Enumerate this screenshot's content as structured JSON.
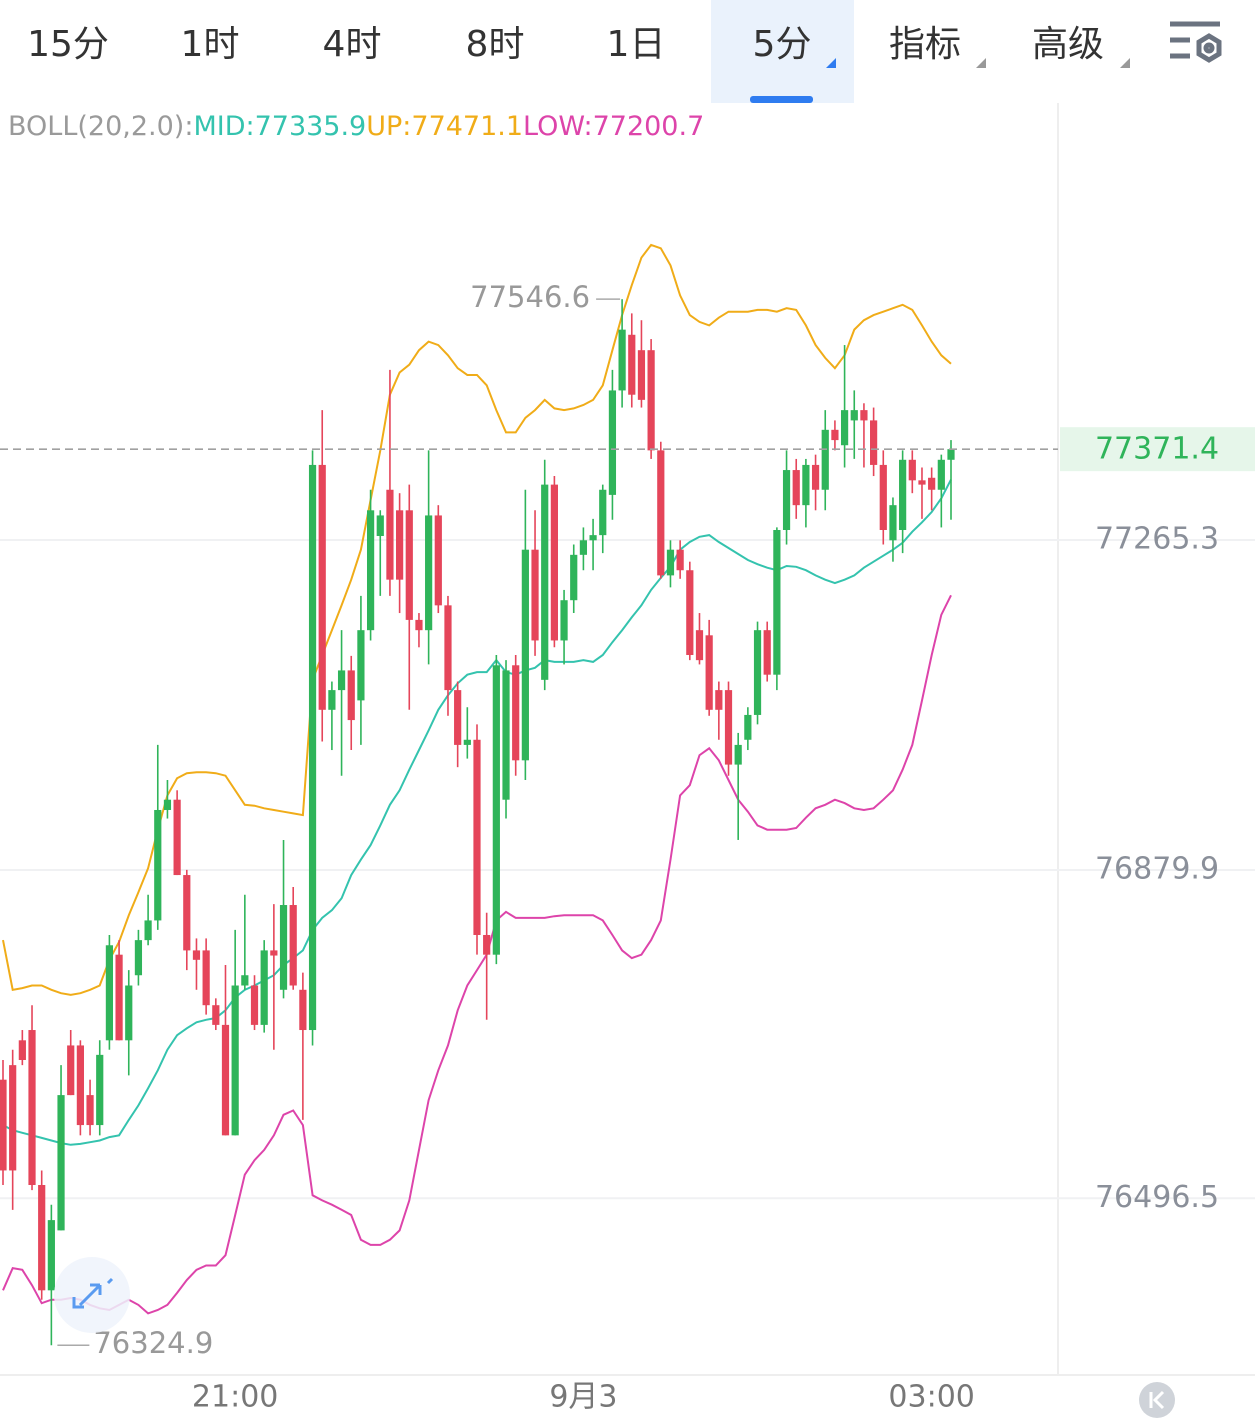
{
  "tabs": [
    "15分",
    "1时",
    "4时",
    "8时",
    "1日",
    "5分",
    "指标",
    "高级"
  ],
  "chart_data": {
    "type": "candlestick",
    "indicator": "BOLL(20,2.0):",
    "categories": [
      null,
      null,
      null,
      null,
      null,
      null,
      null,
      null,
      null,
      null,
      null,
      null,
      null,
      null,
      null,
      null,
      null,
      null,
      null,
      null,
      null,
      null,
      null,
      null,
      "21:00",
      null,
      null,
      null,
      null,
      null,
      null,
      null,
      null,
      null,
      null,
      null,
      null,
      null,
      null,
      null,
      null,
      null,
      null,
      null,
      null,
      null,
      null,
      null,
      null,
      null,
      null,
      null,
      null,
      null,
      null,
      null,
      null,
      null,
      null,
      null,
      "9月3",
      null,
      null,
      null,
      null,
      null,
      null,
      null,
      null,
      null,
      null,
      null,
      null,
      null,
      null,
      null,
      null,
      null,
      null,
      null,
      null,
      null,
      null,
      null,
      null,
      null,
      null,
      null,
      null,
      null,
      null,
      null,
      null,
      null,
      null,
      null,
      "03:00",
      null,
      null
    ],
    "open": [
      76635,
      76652,
      76681,
      76693,
      76512,
      76389,
      76459,
      76675,
      76675,
      76617,
      76582,
      76681,
      76781,
      76681,
      76757,
      76798,
      76821,
      76950,
      76962,
      76874,
      76786,
      76786,
      76722,
      76699,
      76570,
      76745,
      76745,
      76699,
      76786,
      76740,
      76839,
      76740,
      76693,
      77353,
      77067,
      77090,
      77113,
      77078,
      77160,
      77270,
      77324,
      77300,
      77300,
      77172,
      77160,
      77294,
      77189,
      77090,
      77026,
      77032,
      76804,
      76781,
      76962,
      77119,
      77008,
      77254,
      77102,
      77330,
      77148,
      77195,
      77248,
      77265,
      77271,
      77318,
      77440,
      77505,
      77487,
      77487,
      77370,
      77224,
      77254,
      77230,
      77160,
      77154,
      77090,
      77090,
      77003,
      77032,
      77061,
      77160,
      77108,
      77277,
      77347,
      77306,
      77353,
      77324,
      77394,
      77376,
      77405,
      77417,
      77405,
      77353,
      77265,
      77277,
      77359,
      77335,
      77338,
      77324,
      77359
    ],
    "high": [
      76658,
      76670,
      76693,
      76722,
      76529,
      76489,
      76652,
      76693,
      76681,
      76635,
      76681,
      76804,
      76798,
      76763,
      76810,
      76851,
      77026,
      76985,
      76973,
      76880,
      76800,
      76800,
      76730,
      76769,
      76810,
      76851,
      76757,
      76798,
      76840,
      76915,
      76860,
      76760,
      77370,
      77417,
      77100,
      77160,
      77130,
      77200,
      77324,
      77300,
      77464,
      77320,
      77330,
      77180,
      77370,
      77306,
      77200,
      77100,
      77070,
      77050,
      76830,
      77131,
      77125,
      77131,
      77324,
      77300,
      77359,
      77340,
      77207,
      77260,
      77280,
      77290,
      77330,
      77464,
      77546.6,
      77530,
      77522,
      77500,
      77380,
      77265,
      77265,
      77240,
      77180,
      77172,
      77100,
      77100,
      77040,
      77070,
      77170,
      77170,
      77280,
      77370,
      77360,
      77360,
      77365,
      77417,
      77405,
      77493,
      77440,
      77425,
      77420,
      77370,
      77315,
      77370,
      77370,
      77350,
      77350,
      77365,
      77382
    ],
    "low": [
      76512,
      76483,
      76652,
      76506,
      76378,
      76324.9,
      76459,
      76617,
      76570,
      76570,
      76570,
      76670,
      76681,
      76640,
      76745,
      76792,
      76810,
      76940,
      76874,
      76763,
      76740,
      76711,
      76693,
      76570,
      76570,
      76740,
      76693,
      76690,
      76670,
      76730,
      76740,
      76588,
      76675,
      77030,
      77020,
      76990,
      77020,
      77026,
      77148,
      77200,
      77200,
      77180,
      77067,
      77140,
      77120,
      77180,
      77060,
      77000,
      77010,
      76781,
      76705,
      76770,
      76940,
      76990,
      76985,
      77130,
      77090,
      77140,
      77120,
      77180,
      77230,
      77230,
      77250,
      77289,
      77420,
      77420,
      77420,
      77360,
      77220,
      77210,
      77220,
      77125,
      77120,
      77060,
      77032,
      76990,
      76915,
      77020,
      77050,
      77100,
      77090,
      77260,
      77290,
      77280,
      77300,
      77300,
      77370,
      77350,
      77360,
      77350,
      77340,
      77260,
      77240,
      77250,
      77320,
      77290,
      77300,
      77280,
      77289
    ],
    "close": [
      76529,
      76529,
      76658,
      76512,
      76389,
      76471,
      76617,
      76617,
      76582,
      76582,
      76664,
      76792,
      76681,
      76745,
      76798,
      76821,
      76950,
      76962,
      76874,
      76786,
      76775,
      76722,
      76699,
      76570,
      76745,
      76757,
      76699,
      76786,
      76780,
      76839,
      76745,
      76693,
      77353,
      77067,
      77090,
      77113,
      77055,
      77160,
      77300,
      77294,
      77219,
      77219,
      77172,
      77160,
      77294,
      77189,
      77090,
      77026,
      77032,
      76804,
      76781,
      77119,
      77113,
      77008,
      77254,
      77148,
      77330,
      77148,
      77195,
      77248,
      77265,
      77271,
      77324,
      77440,
      77511,
      77435,
      77429,
      77370,
      77224,
      77254,
      77230,
      77131,
      77125,
      77067,
      77067,
      77003,
      77026,
      77061,
      77160,
      77108,
      77277,
      77347,
      77306,
      77353,
      77324,
      77394,
      77382,
      77417,
      77417,
      77405,
      77353,
      77277,
      77306,
      77359,
      77335,
      77330,
      77324,
      77359,
      77371.4
    ],
    "up_color": "#2fb45a",
    "down_color": "#e5455a",
    "series": [
      {
        "name": "MID:77335.9",
        "color": "#34c3ae",
        "values": [
          76582,
          76576,
          76573,
          76570,
          76567,
          76564,
          76561,
          76559,
          76560,
          76562,
          76564,
          76568,
          76570,
          76588,
          76605,
          76625,
          76646,
          76670,
          76687,
          76695,
          76702,
          76705,
          76707,
          76716,
          76731,
          76740,
          76745,
          76751,
          76757,
          76769,
          76777,
          76786,
          76810,
          76824,
          76833,
          76847,
          76874,
          76892,
          76909,
          76932,
          76956,
          76973,
          76997,
          77020,
          77043,
          77067,
          77084,
          77098,
          77108,
          77111,
          77111,
          77125,
          77111,
          77108,
          77113,
          77116,
          77125,
          77123,
          77123,
          77123,
          77125,
          77123,
          77131,
          77146,
          77160,
          77175,
          77189,
          77207,
          77221,
          77234,
          77254,
          77263,
          77269,
          77271,
          77263,
          77256,
          77249,
          77242,
          77237,
          77233,
          77230,
          77235,
          77234,
          77230,
          77224,
          77219,
          77215,
          77219,
          77224,
          77233,
          77240,
          77247,
          77254,
          77262,
          77275,
          77286,
          77298,
          77314,
          77335.9
        ]
      },
      {
        "name": "UP:77471.1",
        "color": "#f0ac18",
        "values": [
          76798,
          76740,
          76742,
          76745,
          76745,
          76740,
          76736,
          76734,
          76736,
          76740,
          76745,
          76775,
          76796,
          76827,
          76854,
          76882,
          76927,
          76967,
          76987,
          76993,
          76994,
          76994,
          76993,
          76990,
          76973,
          76956,
          76955,
          76952,
          76950,
          76948,
          76946,
          76944,
          77102,
          77131,
          77160,
          77189,
          77219,
          77254,
          77312,
          77370,
          77435,
          77461,
          77470,
          77487,
          77497,
          77493,
          77481,
          77466,
          77458,
          77458,
          77446,
          77417,
          77391,
          77391,
          77408,
          77417,
          77429,
          77419,
          77417,
          77419,
          77423,
          77429,
          77446,
          77487,
          77528,
          77563,
          77595,
          77610,
          77606,
          77586,
          77551,
          77528,
          77520,
          77516,
          77525,
          77532,
          77532,
          77532,
          77534,
          77534,
          77532,
          77536,
          77534,
          77516,
          77493,
          77478,
          77466,
          77481,
          77511,
          77522,
          77528,
          77532,
          77536,
          77540,
          77534,
          77516,
          77497,
          77481,
          77471.1
        ]
      },
      {
        "name": "LOW:77200.7",
        "color": "#dd44aa",
        "values": [
          76389,
          76415,
          76413,
          76395,
          76374,
          76378,
          76378,
          76380,
          76378,
          76372,
          76368,
          76366,
          76372,
          76378,
          76372,
          76362,
          76366,
          76372,
          76386,
          76401,
          76413,
          76418,
          76418,
          76430,
          76477,
          76524,
          76541,
          76553,
          76570,
          76594,
          76599,
          76582,
          76500,
          76494,
          76489,
          76483,
          76477,
          76448,
          76442,
          76442,
          76448,
          76459,
          76494,
          76553,
          76611,
          76646,
          76675,
          76716,
          76745,
          76763,
          76781,
          76821,
          76831,
          76824,
          76824,
          76824,
          76824,
          76826,
          76827,
          76827,
          76827,
          76827,
          76821,
          76804,
          76786,
          76777,
          76781,
          76798,
          76821,
          76892,
          76967,
          76979,
          77014,
          77022,
          77008,
          76985,
          76962,
          76948,
          76932,
          76927,
          76927,
          76927,
          76929,
          76941,
          76952,
          76956,
          76962,
          76958,
          76952,
          76950,
          76952,
          76962,
          76973,
          76997,
          77026,
          77078,
          77131,
          77178,
          77200.7
        ]
      }
    ],
    "ylim": [
      76290.1,
      77775.7
    ],
    "yticks": [
      77265.3,
      76879.9,
      76496.5
    ],
    "grid": true,
    "last_price": 77371.4,
    "max_label": 77546.6,
    "min_label": 76324.9
  }
}
